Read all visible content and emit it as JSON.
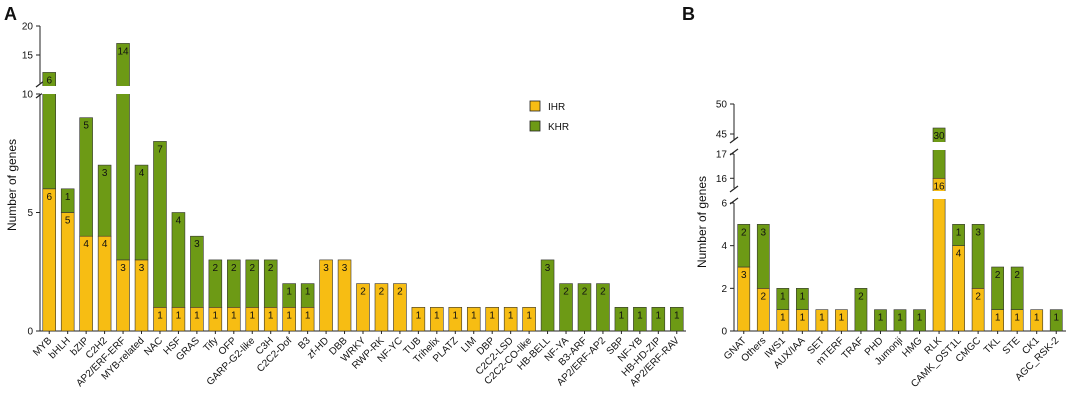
{
  "colors": {
    "ihr": "#f7bd13",
    "khr": "#6d9a15"
  },
  "legend": {
    "ihr": "IHR",
    "khr": "KHR"
  },
  "chart_data": [
    {
      "panel": "A",
      "type": "bar",
      "stacked": true,
      "ylabel": "Number of genes",
      "yticks": [
        0,
        5,
        10,
        15,
        20
      ],
      "axis_break": {
        "lower_max": 10,
        "upper_min": 10,
        "upper_max": 20
      },
      "categories": [
        "MYB",
        "bHLH",
        "bZIP",
        "C2H2",
        "AP2/ERF-ERF",
        "MYB-related",
        "NAC",
        "HSF",
        "GRAS",
        "Tify",
        "OFP",
        "GARP-G2-like",
        "C3H",
        "C2C2-Dof",
        "B3",
        "zf-HD",
        "DBB",
        "WRKY",
        "RWP-RK",
        "NF-YC",
        "TUB",
        "Trihelix",
        "PLATZ",
        "LIM",
        "DBP",
        "C2C2-LSD",
        "C2C2-CO-like",
        "HB-BELL",
        "NF-YA",
        "B3-ARF",
        "AP2/ERF-AP2",
        "SBP",
        "NF-YB",
        "HB-HD-ZIP",
        "AP2/ERF-RAV"
      ],
      "series": [
        {
          "name": "IHR",
          "values": [
            6,
            5,
            4,
            4,
            3,
            3,
            1,
            1,
            1,
            1,
            1,
            1,
            1,
            1,
            1,
            3,
            3,
            2,
            2,
            2,
            1,
            1,
            1,
            1,
            1,
            1,
            1,
            0,
            0,
            0,
            0,
            0,
            0,
            0,
            0
          ]
        },
        {
          "name": "KHR",
          "values": [
            6,
            1,
            5,
            3,
            14,
            4,
            7,
            4,
            3,
            2,
            2,
            2,
            2,
            1,
            1,
            0,
            0,
            0,
            0,
            0,
            0,
            0,
            0,
            0,
            0,
            0,
            0,
            3,
            2,
            2,
            2,
            1,
            1,
            1,
            1
          ]
        }
      ]
    },
    {
      "panel": "B",
      "type": "bar",
      "stacked": true,
      "ylabel": "Number of genes",
      "yticks": [
        0,
        2,
        4,
        6,
        16,
        17,
        45,
        50
      ],
      "axis_break": {
        "segments": [
          [
            0,
            6
          ],
          [
            15.6,
            17
          ],
          [
            44,
            50
          ]
        ]
      },
      "categories": [
        "GNAT",
        "Others",
        "IWS1",
        "AUX/IAA",
        "SET",
        "mTERF",
        "TRAF",
        "PHD",
        "Jumonji",
        "HMG",
        "RLK",
        "CAMK_OST1L",
        "CMGC",
        "TKL",
        "STE",
        "CK1",
        "AGC_RSK-2"
      ],
      "series": [
        {
          "name": "IHR",
          "values": [
            3,
            2,
            1,
            1,
            1,
            1,
            0,
            0,
            0,
            0,
            16,
            4,
            2,
            1,
            1,
            1,
            0
          ]
        },
        {
          "name": "KHR",
          "values": [
            2,
            3,
            1,
            1,
            0,
            0,
            2,
            1,
            1,
            1,
            30,
            1,
            3,
            2,
            2,
            0,
            1
          ]
        }
      ]
    }
  ]
}
